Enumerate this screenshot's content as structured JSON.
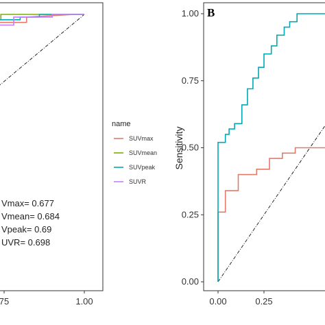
{
  "chart_data": [
    {
      "type": "line",
      "panel": "A",
      "xlim": [
        0,
        1
      ],
      "ylim": [
        0,
        1
      ],
      "visible_x_ticks": [
        "75",
        "1.00"
      ],
      "diagonal_reference": true,
      "auc_labels": [
        "Vmax= 0.677",
        "Vmean= 0.684",
        "Vpeak= 0.69",
        "UVR= 0.698"
      ],
      "series": [
        {
          "name": "SUVmax",
          "color": "#E07B6A",
          "x": [
            0.6,
            0.7,
            0.7,
            0.82,
            0.82,
            0.97,
            1.0
          ],
          "y": [
            0.95,
            0.95,
            0.97,
            0.97,
            0.99,
            1.0,
            1.0
          ]
        },
        {
          "name": "SUVmean",
          "color": "#7CAE00",
          "x": [
            0.6,
            0.68,
            0.68,
            0.74,
            0.74,
            0.88,
            1.0
          ],
          "y": [
            0.92,
            0.92,
            0.98,
            0.98,
            1.0,
            1.0,
            1.0
          ]
        },
        {
          "name": "SUVpeak",
          "color": "#00A9B4",
          "x": [
            0.6,
            0.69,
            0.69,
            0.73,
            0.73,
            0.8,
            0.8,
            0.86,
            0.86,
            1.0
          ],
          "y": [
            0.94,
            0.94,
            0.96,
            0.96,
            0.98,
            0.98,
            0.99,
            0.99,
            1.0,
            1.0
          ]
        },
        {
          "name": "SUVR",
          "color": "#C77CFF",
          "x": [
            0.6,
            0.78,
            0.78,
            0.9,
            0.9,
            1.0
          ],
          "y": [
            0.96,
            0.96,
            0.99,
            0.99,
            1.0,
            1.0
          ]
        }
      ]
    },
    {
      "type": "line",
      "panel": "B",
      "xlim": [
        0,
        0.65
      ],
      "ylim": [
        0,
        1
      ],
      "ylabel": "Sensitivity",
      "y_ticks": [
        "0.00",
        "0.25",
        "0.50",
        "0.75",
        "1.00"
      ],
      "x_ticks": [
        "0.00",
        "0.25"
      ],
      "diagonal_reference": true,
      "series": [
        {
          "name": "SUVmax",
          "color": "#E07B6A",
          "x": [
            0,
            0,
            0.04,
            0.04,
            0.11,
            0.11,
            0.21,
            0.21,
            0.28,
            0.28,
            0.35,
            0.35,
            0.42,
            0.42,
            0.65
          ],
          "y": [
            0,
            0.26,
            0.26,
            0.34,
            0.34,
            0.4,
            0.4,
            0.42,
            0.42,
            0.46,
            0.46,
            0.48,
            0.48,
            0.5,
            0.5
          ]
        },
        {
          "name": "SUVpeak",
          "color": "#00A9B4",
          "x": [
            0,
            0,
            0.04,
            0.04,
            0.06,
            0.06,
            0.09,
            0.09,
            0.13,
            0.13,
            0.16,
            0.16,
            0.19,
            0.19,
            0.22,
            0.22,
            0.25,
            0.25,
            0.29,
            0.29,
            0.32,
            0.32,
            0.36,
            0.36,
            0.39,
            0.39,
            0.43,
            0.43,
            0.65
          ],
          "y": [
            0,
            0.52,
            0.52,
            0.55,
            0.55,
            0.57,
            0.57,
            0.59,
            0.59,
            0.66,
            0.66,
            0.72,
            0.72,
            0.76,
            0.76,
            0.8,
            0.8,
            0.85,
            0.85,
            0.88,
            0.88,
            0.92,
            0.92,
            0.95,
            0.95,
            0.97,
            0.97,
            1.0,
            1.0
          ]
        }
      ]
    }
  ],
  "legend": {
    "title": "name",
    "items": [
      {
        "label": "SUVmax",
        "color": "#E07B6A"
      },
      {
        "label": "SUVmean",
        "color": "#7CAE00"
      },
      {
        "label": "SUVpeak",
        "color": "#00A9B4"
      },
      {
        "label": "SUVR",
        "color": "#C77CFF"
      }
    ]
  },
  "panel_b_letter": "B"
}
